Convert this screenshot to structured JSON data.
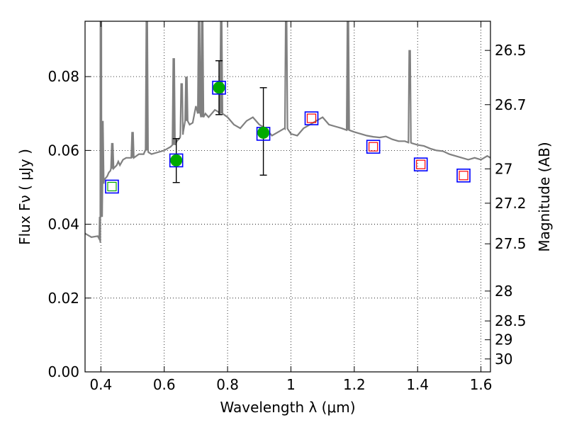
{
  "chart_data": {
    "type": "scatter",
    "xlabel": "Wavelength  λ (μm)",
    "ylabel": "Flux  Fν  ( μJy )",
    "ylabel_right": "Magnitude (AB)",
    "xlim": [
      0.35,
      1.63
    ],
    "ylim": [
      0.0,
      0.095
    ],
    "x_ticks": [
      0.4,
      0.6,
      0.8,
      1.0,
      1.2,
      1.4,
      1.6
    ],
    "x_tick_labels": [
      "0.4",
      "0.6",
      "0.8",
      "1",
      "1.2",
      "1.4",
      "1.6"
    ],
    "y_ticks": [
      0.0,
      0.02,
      0.04,
      0.06,
      0.08
    ],
    "y_tick_labels": [
      "0.00",
      "0.02",
      "0.04",
      "0.06",
      "0.08"
    ],
    "right_ticks": [
      {
        "label": "26.5",
        "flux": 0.0871
      },
      {
        "label": "26.7",
        "flux": 0.0724
      },
      {
        "label": "27",
        "flux": 0.055
      },
      {
        "label": "27.2",
        "flux": 0.0457
      },
      {
        "label": "27.5",
        "flux": 0.0347
      },
      {
        "label": "28",
        "flux": 0.0219
      },
      {
        "label": "28.5",
        "flux": 0.0138
      },
      {
        "label": "29",
        "flux": 0.0087
      },
      {
        "label": "30",
        "flux": 0.0035
      }
    ],
    "grid": true,
    "sed_model": {
      "color": "#808080",
      "x": [
        0.35,
        0.37,
        0.39,
        0.395,
        0.398,
        0.4,
        0.402,
        0.405,
        0.41,
        0.42,
        0.425,
        0.43,
        0.435,
        0.44,
        0.45,
        0.455,
        0.46,
        0.47,
        0.48,
        0.5,
        0.52,
        0.535,
        0.54,
        0.545,
        0.55,
        0.56,
        0.58,
        0.6,
        0.62,
        0.63,
        0.64,
        0.65,
        0.66,
        0.67,
        0.68,
        0.69,
        0.7,
        0.71,
        0.72,
        0.73,
        0.74,
        0.75,
        0.76,
        0.77,
        0.78,
        0.8,
        0.82,
        0.84,
        0.86,
        0.88,
        0.9,
        0.92,
        0.94,
        0.96,
        0.97,
        0.98,
        0.99,
        1.0,
        1.02,
        1.04,
        1.06,
        1.08,
        1.1,
        1.12,
        1.14,
        1.16,
        1.18,
        1.2,
        1.22,
        1.24,
        1.26,
        1.28,
        1.3,
        1.32,
        1.34,
        1.36,
        1.38,
        1.4,
        1.42,
        1.44,
        1.46,
        1.48,
        1.5,
        1.52,
        1.54,
        1.56,
        1.58,
        1.6,
        1.62,
        1.63
      ],
      "y": [
        0.0375,
        0.0365,
        0.0368,
        0.036,
        0.035,
        0.042,
        0.049,
        0.051,
        0.052,
        0.053,
        0.054,
        0.0545,
        0.055,
        0.0555,
        0.056,
        0.057,
        0.056,
        0.0575,
        0.058,
        0.058,
        0.059,
        0.059,
        0.06,
        0.06,
        0.0595,
        0.059,
        0.0595,
        0.06,
        0.061,
        0.0615,
        0.0625,
        0.0635,
        0.065,
        0.068,
        0.067,
        0.0675,
        0.072,
        0.07,
        0.069,
        0.07,
        0.069,
        0.07,
        0.071,
        0.0705,
        0.07,
        0.069,
        0.067,
        0.066,
        0.068,
        0.069,
        0.067,
        0.066,
        0.064,
        0.065,
        0.0655,
        0.066,
        0.0658,
        0.0645,
        0.064,
        0.066,
        0.067,
        0.068,
        0.069,
        0.067,
        0.0665,
        0.066,
        0.0655,
        0.065,
        0.0645,
        0.064,
        0.0637,
        0.0635,
        0.0638,
        0.063,
        0.0625,
        0.0625,
        0.062,
        0.0615,
        0.0612,
        0.0605,
        0.06,
        0.0598,
        0.059,
        0.0585,
        0.058,
        0.0575,
        0.058,
        0.0575,
        0.0585,
        0.058
      ],
      "emission_lines": [
        {
          "x": 0.4,
          "peak": 0.095
        },
        {
          "x": 0.405,
          "peak": 0.068
        },
        {
          "x": 0.436,
          "peak": 0.062
        },
        {
          "x": 0.5,
          "peak": 0.065
        },
        {
          "x": 0.545,
          "peak": 0.095
        },
        {
          "x": 0.63,
          "peak": 0.085
        },
        {
          "x": 0.655,
          "peak": 0.078
        },
        {
          "x": 0.67,
          "peak": 0.08
        },
        {
          "x": 0.71,
          "peak": 0.095
        },
        {
          "x": 0.72,
          "peak": 0.095
        },
        {
          "x": 0.78,
          "peak": 0.095
        },
        {
          "x": 0.985,
          "peak": 0.095
        },
        {
          "x": 1.18,
          "peak": 0.095
        },
        {
          "x": 1.375,
          "peak": 0.087
        }
      ]
    },
    "series": [
      {
        "marker": "open-square",
        "color": "#0000ff",
        "x": [
          0.435,
          0.638,
          0.773,
          0.913,
          1.065,
          1.26,
          1.41,
          1.545
        ],
        "y": [
          0.0502,
          0.0573,
          0.077,
          0.0645,
          0.0687,
          0.061,
          0.0562,
          0.0532
        ]
      },
      {
        "marker": "filled-circle",
        "color": "#00aa00",
        "x": [
          0.638,
          0.773,
          0.913
        ],
        "y": [
          0.0573,
          0.077,
          0.0648
        ],
        "yerr_low": [
          0.0513,
          0.0697,
          0.0533
        ],
        "yerr_high": [
          0.0632,
          0.0843,
          0.077
        ]
      },
      {
        "marker": "small-open-square",
        "color": "#00aa00",
        "x": [
          0.435
        ],
        "y": [
          0.0502
        ]
      },
      {
        "marker": "small-open-square",
        "color": "#ff0000",
        "x": [
          1.065,
          1.26,
          1.41,
          1.545
        ],
        "y": [
          0.0687,
          0.061,
          0.0562,
          0.0532
        ]
      }
    ]
  }
}
